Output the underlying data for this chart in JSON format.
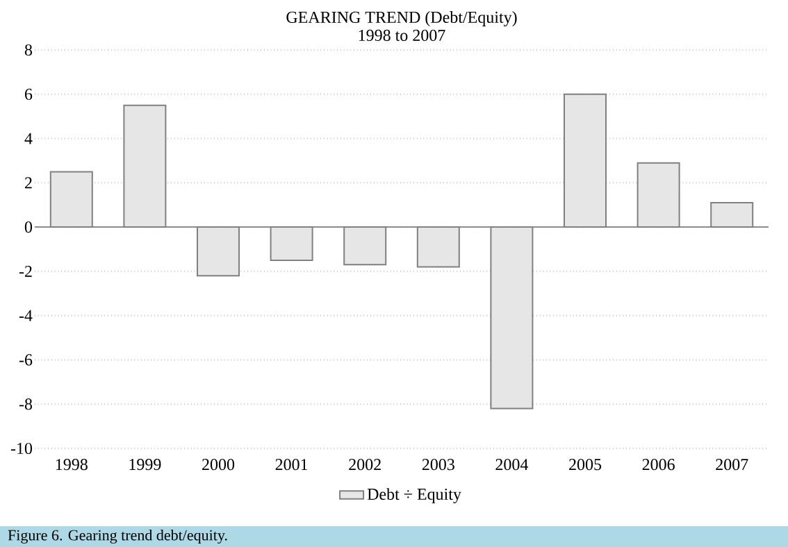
{
  "chart_data": {
    "type": "bar",
    "title": "GEARING TREND (Debt/Equity)",
    "subtitle": "1998 to 2007",
    "categories": [
      "1998",
      "1999",
      "2000",
      "2001",
      "2002",
      "2003",
      "2004",
      "2005",
      "2006",
      "2007"
    ],
    "series": [
      {
        "name": "Debt ÷ Equity",
        "color": "#e6e6e6",
        "values": [
          2.5,
          5.5,
          -2.2,
          -1.5,
          -1.7,
          -1.8,
          -8.2,
          6.0,
          2.9,
          1.1
        ]
      }
    ],
    "ylim": [
      -10,
      8
    ],
    "yticks": [
      -10,
      -8,
      -6,
      -4,
      -2,
      0,
      2,
      4,
      6,
      8
    ],
    "grid": "y",
    "legend": "bottom",
    "annotations": [
      "Figure 6. Gearing trend debt/equity."
    ]
  }
}
